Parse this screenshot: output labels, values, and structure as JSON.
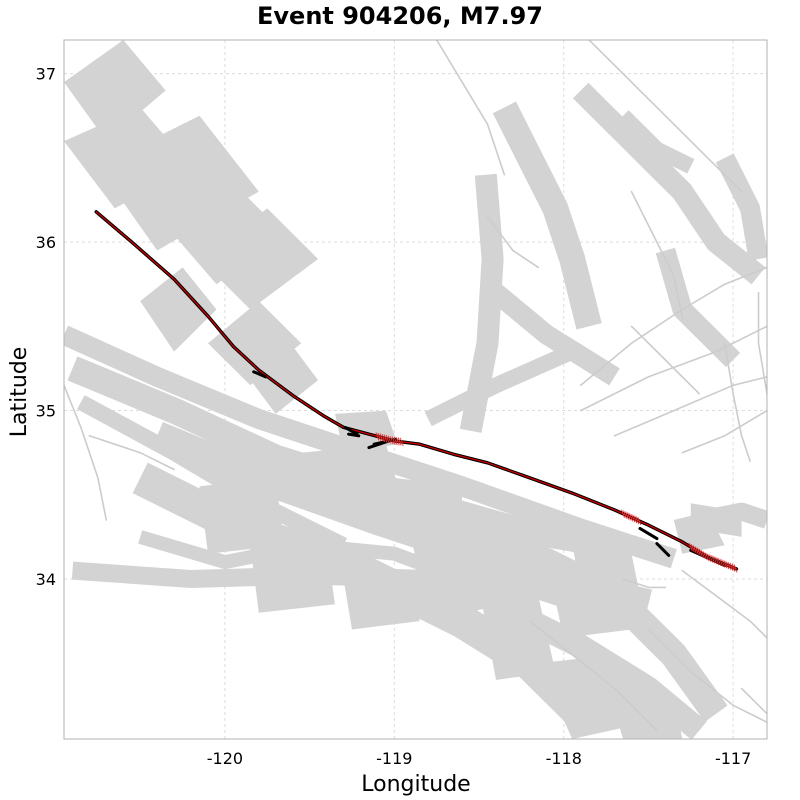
{
  "title": "Event 904206, M7.97",
  "map": {
    "xlabel": "Longitude",
    "ylabel": "Latitude",
    "xlim": [
      -120.95,
      -116.8
    ],
    "ylim": [
      33.05,
      37.2
    ],
    "xticks": [
      {
        "value": -120,
        "label": "-120"
      },
      {
        "value": -119,
        "label": "-119"
      },
      {
        "value": -118,
        "label": "-118"
      },
      {
        "value": -117,
        "label": "-117"
      }
    ],
    "yticks": [
      {
        "value": 34,
        "label": "34"
      },
      {
        "value": 35,
        "label": "35"
      },
      {
        "value": 36,
        "label": "36"
      },
      {
        "value": 37,
        "label": "37"
      }
    ],
    "grid": true,
    "colors": {
      "background_faults": "#d3d3d3",
      "rupture_trace": "#000000",
      "slip_markers": "#cc0000"
    },
    "rupture_trace": [
      [
        -120.76,
        36.18
      ],
      [
        -120.55,
        36.0
      ],
      [
        -120.3,
        35.78
      ],
      [
        -120.1,
        35.56
      ],
      [
        -119.95,
        35.38
      ],
      [
        -119.8,
        35.24
      ],
      [
        -119.6,
        35.09
      ],
      [
        -119.42,
        34.97
      ],
      [
        -119.3,
        34.9
      ],
      [
        -119.15,
        34.86
      ],
      [
        -119.0,
        34.82
      ],
      [
        -118.85,
        34.8
      ],
      [
        -118.65,
        34.74
      ],
      [
        -118.45,
        34.69
      ],
      [
        -118.2,
        34.6
      ],
      [
        -117.95,
        34.51
      ],
      [
        -117.7,
        34.41
      ],
      [
        -117.5,
        34.32
      ],
      [
        -117.3,
        34.22
      ],
      [
        -117.15,
        34.13
      ],
      [
        -116.98,
        34.06
      ]
    ],
    "rupture_segments": [
      [
        [
          -119.83,
          35.23
        ],
        [
          -119.76,
          35.2
        ]
      ],
      [
        [
          -119.29,
          34.9
        ],
        [
          -119.22,
          34.86
        ]
      ],
      [
        [
          -119.27,
          34.86
        ],
        [
          -119.21,
          34.85
        ]
      ],
      [
        [
          -119.15,
          34.78
        ],
        [
          -119.03,
          34.82
        ]
      ],
      [
        [
          -119.12,
          34.8
        ],
        [
          -118.99,
          34.83
        ]
      ],
      [
        [
          -117.55,
          34.3
        ],
        [
          -117.45,
          34.24
        ]
      ],
      [
        [
          -117.45,
          34.21
        ],
        [
          -117.38,
          34.14
        ]
      ],
      [
        [
          -117.25,
          34.17
        ],
        [
          -117.05,
          34.08
        ]
      ]
    ],
    "fault_bands": [
      {
        "w": 20,
        "pts": [
          [
            -120.95,
            35.45
          ],
          [
            -120.4,
            35.2
          ],
          [
            -119.8,
            34.95
          ],
          [
            -119.2,
            34.75
          ],
          [
            -118.6,
            34.55
          ],
          [
            -117.9,
            34.3
          ],
          [
            -117.35,
            34.12
          ]
        ]
      },
      {
        "w": 26,
        "pts": [
          [
            -120.9,
            35.25
          ],
          [
            -120.3,
            35.0
          ],
          [
            -119.7,
            34.72
          ],
          [
            -119.0,
            34.5
          ],
          [
            -118.3,
            34.3
          ],
          [
            -117.6,
            34.18
          ]
        ]
      },
      {
        "w": 30,
        "pts": [
          [
            -120.4,
            34.85
          ],
          [
            -119.8,
            34.6
          ],
          [
            -119.1,
            34.35
          ],
          [
            -118.5,
            34.15
          ],
          [
            -117.9,
            33.95
          ],
          [
            -117.5,
            33.85
          ]
        ]
      },
      {
        "w": 18,
        "pts": [
          [
            -120.9,
            34.05
          ],
          [
            -120.2,
            34.0
          ],
          [
            -119.5,
            34.02
          ],
          [
            -118.8,
            34.0
          ],
          [
            -118.2,
            33.95
          ],
          [
            -117.6,
            33.75
          ]
        ]
      },
      {
        "w": 34,
        "pts": [
          [
            -120.5,
            34.6
          ],
          [
            -119.9,
            34.3
          ],
          [
            -119.2,
            34.05
          ],
          [
            -118.6,
            33.75
          ],
          [
            -118.2,
            33.5
          ],
          [
            -117.9,
            33.2
          ]
        ]
      },
      {
        "w": 16,
        "pts": [
          [
            -120.85,
            35.05
          ],
          [
            -120.3,
            34.75
          ],
          [
            -119.8,
            34.45
          ],
          [
            -119.3,
            34.2
          ]
        ]
      },
      {
        "w": 28,
        "pts": [
          [
            -119.3,
            34.5
          ],
          [
            -118.7,
            34.3
          ],
          [
            -118.1,
            34.1
          ],
          [
            -117.7,
            33.9
          ],
          [
            -117.35,
            33.55
          ],
          [
            -117.1,
            33.2
          ]
        ]
      },
      {
        "w": 24,
        "pts": [
          [
            -118.3,
            33.8
          ],
          [
            -117.9,
            33.6
          ],
          [
            -117.5,
            33.35
          ],
          [
            -117.2,
            33.1
          ]
        ]
      },
      {
        "w": 14,
        "pts": [
          [
            -120.5,
            34.25
          ],
          [
            -120.0,
            34.1
          ],
          [
            -119.5,
            34.2
          ],
          [
            -119.0,
            34.15
          ],
          [
            -118.6,
            34.0
          ]
        ]
      },
      {
        "w": 22,
        "pts": [
          [
            -118.55,
            34.88
          ],
          [
            -118.45,
            35.4
          ],
          [
            -118.42,
            35.9
          ],
          [
            -118.46,
            36.4
          ]
        ]
      },
      {
        "w": 26,
        "pts": [
          [
            -118.35,
            36.8
          ],
          [
            -118.2,
            36.5
          ],
          [
            -118.05,
            36.2
          ],
          [
            -117.95,
            35.9
          ],
          [
            -117.85,
            35.5
          ]
        ]
      },
      {
        "w": 22,
        "pts": [
          [
            -117.9,
            36.9
          ],
          [
            -117.6,
            36.6
          ],
          [
            -117.3,
            36.3
          ],
          [
            -117.1,
            36.0
          ],
          [
            -116.85,
            35.8
          ]
        ]
      },
      {
        "w": 20,
        "pts": [
          [
            -118.4,
            35.7
          ],
          [
            -118.1,
            35.45
          ],
          [
            -117.7,
            35.2
          ]
        ]
      },
      {
        "w": 16,
        "pts": [
          [
            -118.8,
            34.95
          ],
          [
            -118.4,
            35.15
          ],
          [
            -117.95,
            35.35
          ]
        ]
      },
      {
        "w": 20,
        "pts": [
          [
            -117.4,
            35.95
          ],
          [
            -117.3,
            35.6
          ],
          [
            -117.0,
            35.3
          ]
        ]
      },
      {
        "w": 18,
        "pts": [
          [
            -117.2,
            34.35
          ],
          [
            -116.95,
            34.4
          ],
          [
            -116.8,
            34.35
          ]
        ]
      },
      {
        "w": 20,
        "pts": [
          [
            -117.05,
            36.5
          ],
          [
            -116.9,
            36.2
          ],
          [
            -116.85,
            35.9
          ]
        ]
      },
      {
        "w": 16,
        "pts": [
          [
            -117.65,
            36.75
          ],
          [
            -117.45,
            36.55
          ],
          [
            -117.25,
            36.45
          ]
        ]
      }
    ],
    "fault_patches": [
      [
        [
          -120.95,
          36.95
        ],
        [
          -120.6,
          37.2
        ],
        [
          -120.35,
          36.9
        ],
        [
          -120.7,
          36.6
        ]
      ],
      [
        [
          -120.95,
          36.6
        ],
        [
          -120.5,
          36.8
        ],
        [
          -120.2,
          36.45
        ],
        [
          -120.65,
          36.2
        ]
      ],
      [
        [
          -120.75,
          36.45
        ],
        [
          -120.15,
          36.75
        ],
        [
          -119.8,
          36.3
        ],
        [
          -120.4,
          35.95
        ]
      ],
      [
        [
          -120.35,
          36.1
        ],
        [
          -119.95,
          36.35
        ],
        [
          -119.65,
          36.05
        ],
        [
          -120.05,
          35.75
        ]
      ],
      [
        [
          -120.15,
          35.9
        ],
        [
          -119.75,
          36.2
        ],
        [
          -119.45,
          35.9
        ],
        [
          -119.85,
          35.6
        ]
      ],
      [
        [
          -120.1,
          35.4
        ],
        [
          -119.8,
          35.65
        ],
        [
          -119.55,
          35.4
        ],
        [
          -119.85,
          35.15
        ]
      ],
      [
        [
          -120.5,
          35.65
        ],
        [
          -120.25,
          35.85
        ],
        [
          -120.05,
          35.6
        ],
        [
          -120.3,
          35.35
        ]
      ],
      [
        [
          -119.9,
          35.25
        ],
        [
          -119.65,
          35.45
        ],
        [
          -119.45,
          35.18
        ],
        [
          -119.7,
          34.98
        ]
      ],
      [
        [
          -119.35,
          34.98
        ],
        [
          -119.05,
          35.0
        ],
        [
          -118.98,
          34.8
        ],
        [
          -119.3,
          34.75
        ]
      ],
      [
        [
          -119.55,
          34.75
        ],
        [
          -119.05,
          34.8
        ],
        [
          -118.95,
          34.45
        ],
        [
          -119.5,
          34.4
        ]
      ],
      [
        [
          -119.0,
          34.6
        ],
        [
          -118.6,
          34.55
        ],
        [
          -118.6,
          34.2
        ],
        [
          -119.05,
          34.25
        ]
      ],
      [
        [
          -120.15,
          34.55
        ],
        [
          -119.7,
          34.6
        ],
        [
          -119.65,
          34.2
        ],
        [
          -120.1,
          34.15
        ]
      ],
      [
        [
          -119.85,
          34.2
        ],
        [
          -119.4,
          34.2
        ],
        [
          -119.35,
          33.85
        ],
        [
          -119.8,
          33.8
        ]
      ],
      [
        [
          -118.9,
          34.25
        ],
        [
          -118.45,
          34.3
        ],
        [
          -118.35,
          33.85
        ],
        [
          -118.8,
          33.75
        ]
      ],
      [
        [
          -118.5,
          33.95
        ],
        [
          -118.15,
          33.9
        ],
        [
          -118.05,
          33.45
        ],
        [
          -118.4,
          33.4
        ]
      ],
      [
        [
          -118.1,
          34.1
        ],
        [
          -117.7,
          34.05
        ],
        [
          -117.6,
          33.7
        ],
        [
          -118.0,
          33.65
        ]
      ],
      [
        [
          -118.15,
          33.5
        ],
        [
          -117.7,
          33.55
        ],
        [
          -117.5,
          33.15
        ],
        [
          -117.95,
          33.05
        ]
      ],
      [
        [
          -117.75,
          33.4
        ],
        [
          -117.35,
          33.3
        ],
        [
          -117.3,
          33.05
        ],
        [
          -117.65,
          33.05
        ]
      ],
      [
        [
          -117.35,
          34.35
        ],
        [
          -117.15,
          34.4
        ],
        [
          -117.05,
          34.2
        ],
        [
          -117.3,
          34.15
        ]
      ],
      [
        [
          -117.25,
          34.45
        ],
        [
          -116.95,
          34.4
        ],
        [
          -116.95,
          34.25
        ],
        [
          -117.25,
          34.3
        ]
      ],
      [
        [
          -117.95,
          34.2
        ],
        [
          -117.6,
          34.15
        ],
        [
          -117.55,
          33.9
        ],
        [
          -117.9,
          33.95
        ]
      ],
      [
        [
          -119.3,
          34.0
        ],
        [
          -118.9,
          34.0
        ],
        [
          -118.85,
          33.75
        ],
        [
          -119.25,
          33.7
        ]
      ]
    ],
    "fault_lines": [
      [
        [
          -118.75,
          37.2
        ],
        [
          -118.6,
          36.95
        ],
        [
          -118.45,
          36.7
        ],
        [
          -118.35,
          36.4
        ]
      ],
      [
        [
          -117.85,
          37.2
        ],
        [
          -117.6,
          36.95
        ],
        [
          -117.35,
          36.7
        ],
        [
          -117.15,
          36.5
        ],
        [
          -116.95,
          36.3
        ]
      ],
      [
        [
          -117.6,
          36.3
        ],
        [
          -117.45,
          36.0
        ],
        [
          -117.35,
          35.8
        ],
        [
          -117.3,
          35.55
        ]
      ],
      [
        [
          -117.9,
          35.15
        ],
        [
          -117.6,
          35.4
        ],
        [
          -117.3,
          35.6
        ],
        [
          -117.05,
          35.75
        ],
        [
          -116.8,
          35.85
        ]
      ],
      [
        [
          -117.9,
          35.0
        ],
        [
          -117.5,
          35.2
        ],
        [
          -117.1,
          35.35
        ],
        [
          -116.8,
          35.5
        ]
      ],
      [
        [
          -117.7,
          34.85
        ],
        [
          -117.35,
          35.0
        ],
        [
          -117.0,
          35.15
        ],
        [
          -116.8,
          35.2
        ]
      ],
      [
        [
          -117.3,
          34.75
        ],
        [
          -117.05,
          34.85
        ],
        [
          -116.8,
          35.0
        ]
      ],
      [
        [
          -117.05,
          35.4
        ],
        [
          -117.0,
          35.1
        ],
        [
          -116.95,
          34.85
        ],
        [
          -116.9,
          34.7
        ]
      ],
      [
        [
          -116.85,
          35.7
        ],
        [
          -116.85,
          35.4
        ],
        [
          -116.8,
          35.1
        ]
      ],
      [
        [
          -120.95,
          35.15
        ],
        [
          -120.85,
          34.9
        ],
        [
          -120.75,
          34.6
        ],
        [
          -120.7,
          34.35
        ]
      ],
      [
        [
          -120.8,
          34.85
        ],
        [
          -120.5,
          34.75
        ],
        [
          -120.3,
          34.65
        ]
      ],
      [
        [
          -118.2,
          33.75
        ],
        [
          -117.95,
          33.55
        ],
        [
          -117.7,
          33.35
        ],
        [
          -117.45,
          33.1
        ]
      ],
      [
        [
          -117.5,
          33.7
        ],
        [
          -117.25,
          33.45
        ],
        [
          -117.0,
          33.25
        ],
        [
          -116.8,
          33.15
        ]
      ],
      [
        [
          -116.95,
          33.35
        ],
        [
          -116.85,
          33.25
        ],
        [
          -116.8,
          33.2
        ]
      ],
      [
        [
          -117.3,
          34.05
        ],
        [
          -117.1,
          33.9
        ],
        [
          -116.9,
          33.75
        ],
        [
          -116.8,
          33.65
        ]
      ],
      [
        [
          -117.65,
          34.0
        ],
        [
          -117.5,
          33.95
        ],
        [
          -117.4,
          33.95
        ]
      ],
      [
        [
          -118.45,
          36.15
        ],
        [
          -118.3,
          35.95
        ],
        [
          -118.15,
          35.85
        ]
      ],
      [
        [
          -117.6,
          35.5
        ],
        [
          -117.4,
          35.3
        ],
        [
          -117.2,
          35.1
        ]
      ]
    ]
  }
}
